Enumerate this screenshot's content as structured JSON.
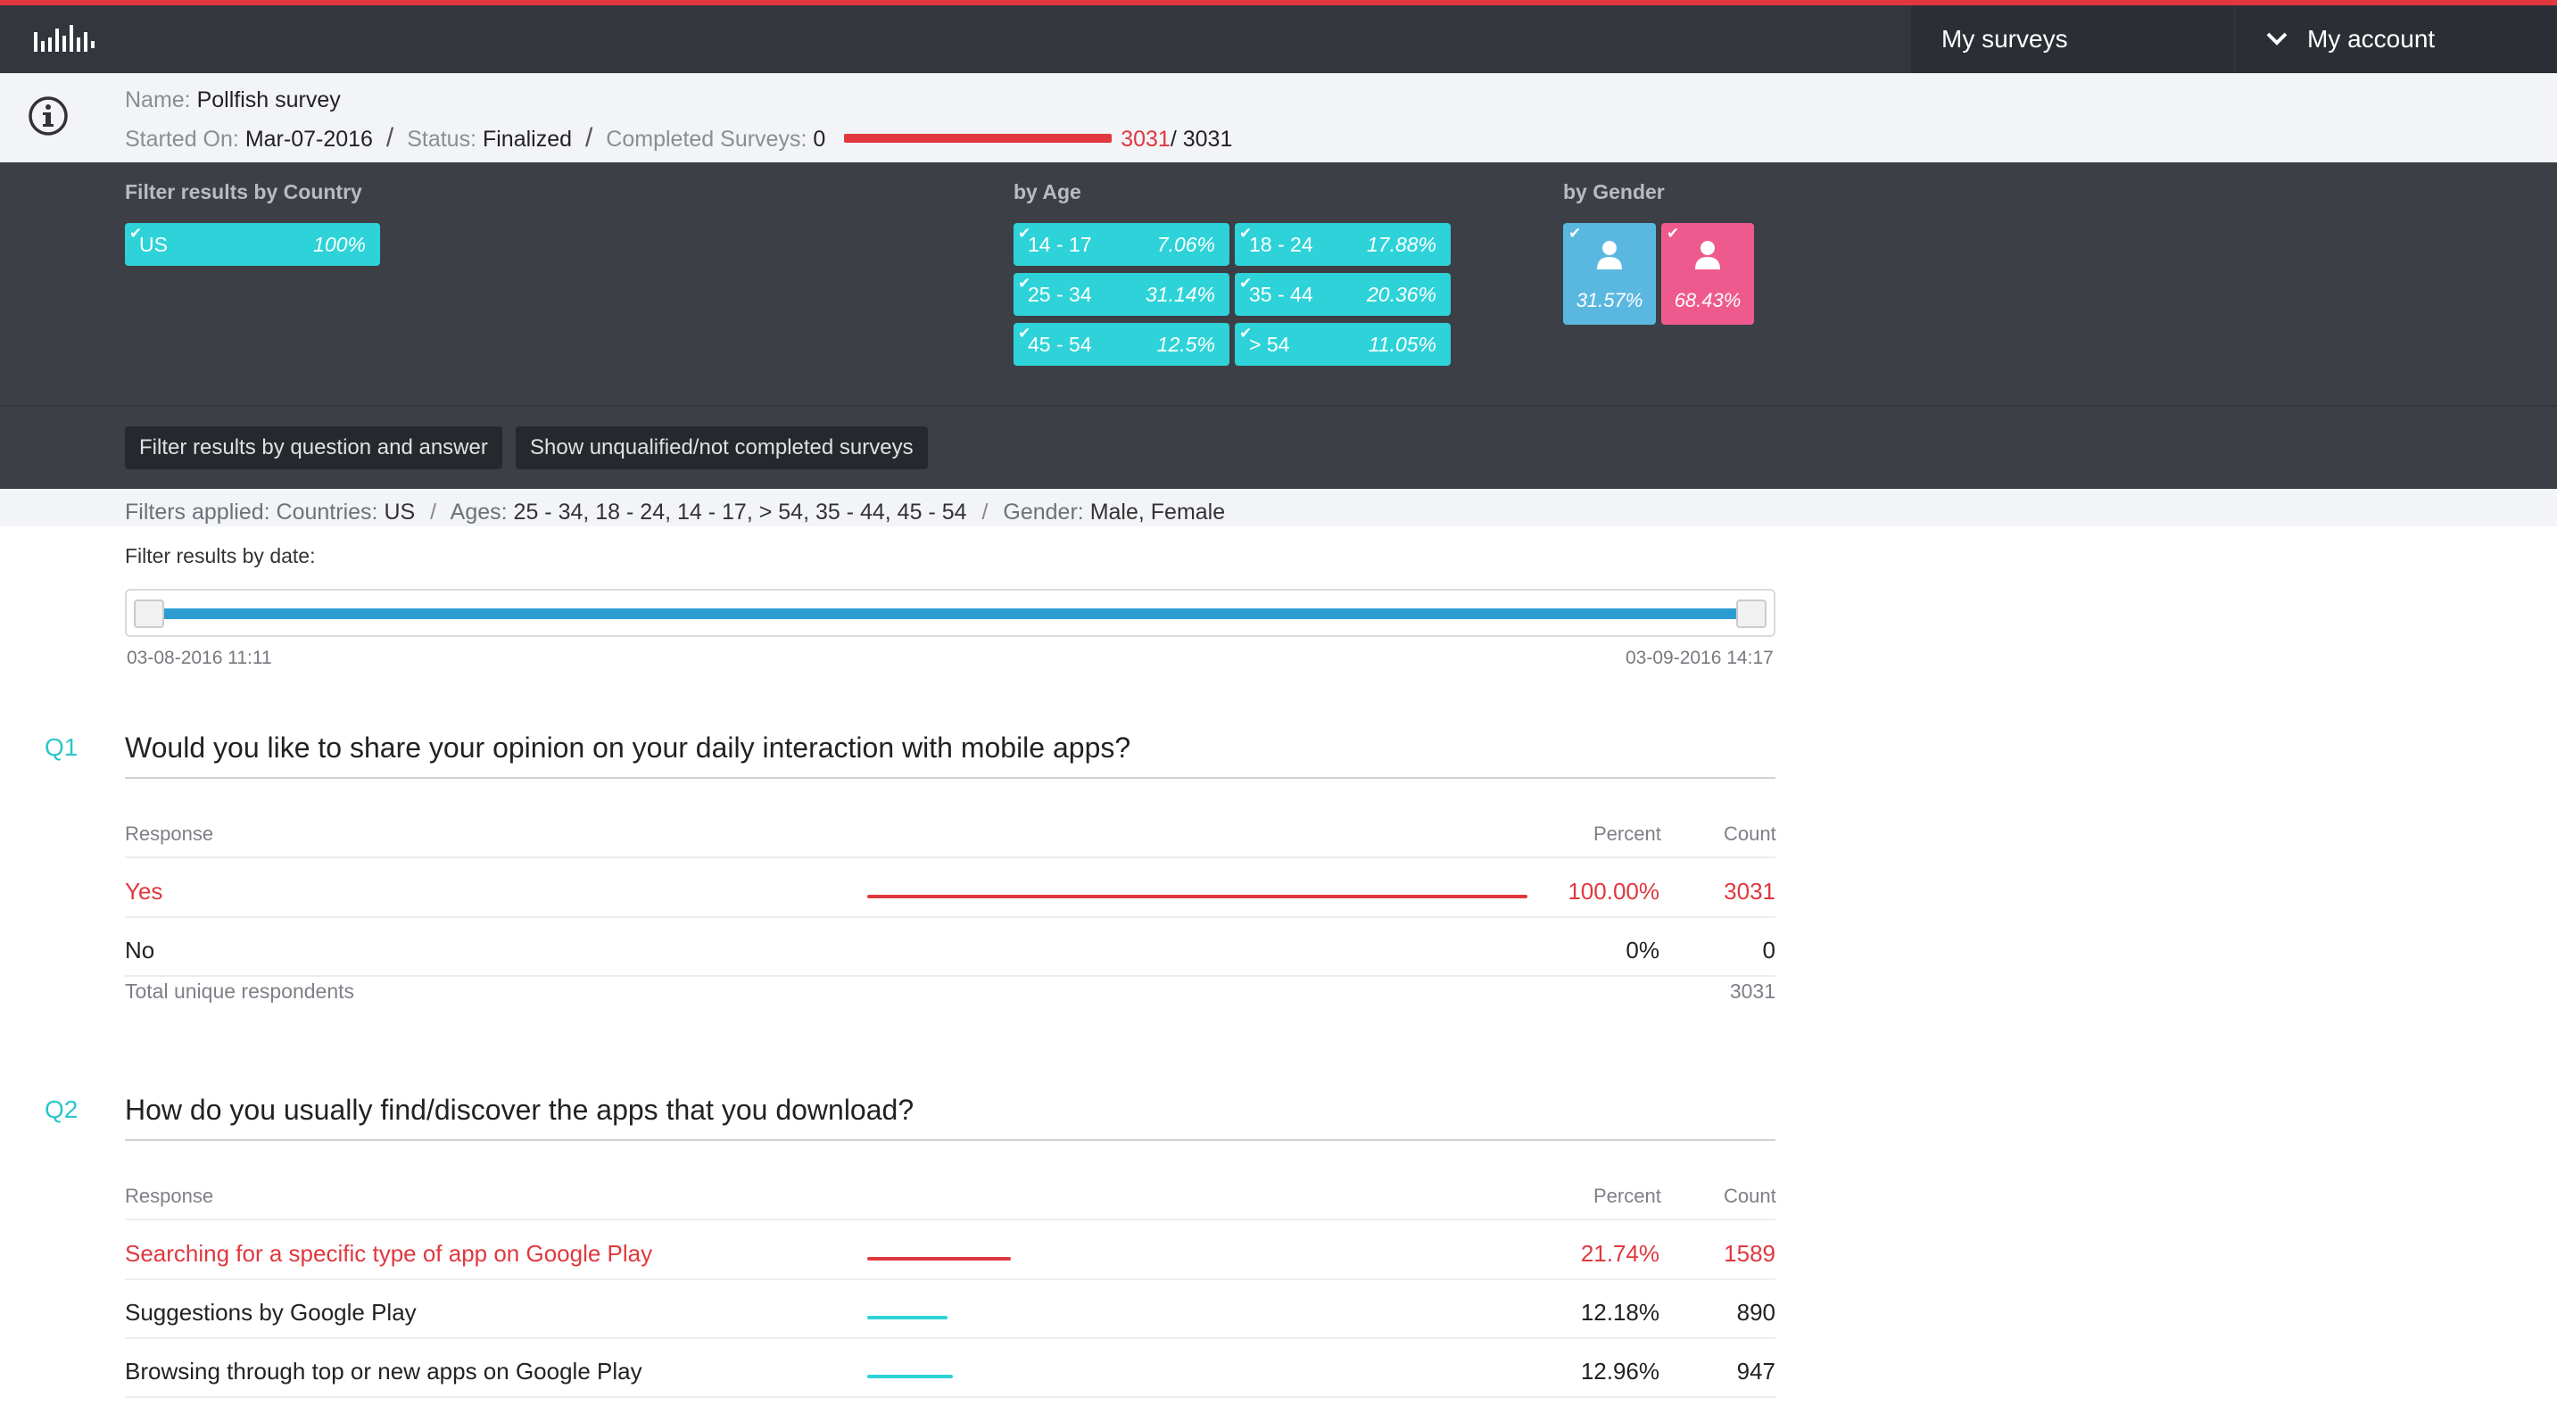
{
  "nav": {
    "my_surveys": "My surveys",
    "my_account": "My account"
  },
  "info": {
    "name_label": "Name:",
    "name_value": "Pollfish survey",
    "started_label": "Started On:",
    "started_value": "Mar-07-2016",
    "status_label": "Status:",
    "status_value": "Finalized",
    "completed_label": "Completed Surveys:",
    "completed_min": "0",
    "completed_count": "3031",
    "completed_total": "/ 3031"
  },
  "filters": {
    "country_title": "Filter results by Country",
    "country": {
      "label": "US",
      "pct": "100%"
    },
    "age_title": "by Age",
    "ages": [
      {
        "label": "14 - 17",
        "pct": "7.06%"
      },
      {
        "label": "18 - 24",
        "pct": "17.88%"
      },
      {
        "label": "25 - 34",
        "pct": "31.14%"
      },
      {
        "label": "35 - 44",
        "pct": "20.36%"
      },
      {
        "label": "45 - 54",
        "pct": "12.5%"
      },
      {
        "label": "> 54",
        "pct": "11.05%"
      }
    ],
    "gender_title": "by Gender",
    "male_pct": "31.57%",
    "female_pct": "68.43%",
    "btn_question_filter": "Filter results by question and answer",
    "btn_unqualified": "Show unqualified/not completed surveys"
  },
  "applied": {
    "label": "Filters applied:",
    "countries_label": "Countries:",
    "countries_value": "US",
    "ages_label": "Ages:",
    "ages_value": "25 - 34, 18 - 24, 14 - 17, > 54, 35 - 44, 45 - 54",
    "gender_label": "Gender:",
    "gender_value": "Male, Female",
    "sep": "/"
  },
  "date_filter": {
    "title": "Filter results by date:",
    "start": "03-08-2016 11:11",
    "end": "03-09-2016 14:17"
  },
  "colors": {
    "accent_red": "#e0383e",
    "accent_teal": "#2dd3d8",
    "male_blue": "#5ab8e0",
    "female_pink": "#ef5a8e"
  },
  "table_headers": {
    "response": "Response",
    "percent": "Percent",
    "count": "Count"
  },
  "q1": {
    "num": "Q1",
    "title": "Would you like to share your opinion on your daily interaction with mobile apps?",
    "rows": [
      {
        "label": "Yes",
        "percent": "100.00%",
        "count": "3031",
        "share": 1.0
      },
      {
        "label": "No",
        "percent": "0%",
        "count": "0",
        "share": 0
      }
    ],
    "total_label": "Total unique respondents",
    "total_value": "3031"
  },
  "q2": {
    "num": "Q2",
    "title": "How do you usually find/discover the apps that you download?",
    "rows": [
      {
        "label": "Searching for a specific type of app on Google Play",
        "percent": "21.74%",
        "count": "1589",
        "share": 0.2174
      },
      {
        "label": "Suggestions by Google Play",
        "percent": "12.18%",
        "count": "890",
        "share": 0.1218
      },
      {
        "label": "Browsing through top or new apps on Google Play",
        "percent": "12.96%",
        "count": "947",
        "share": 0.1296
      }
    ]
  }
}
